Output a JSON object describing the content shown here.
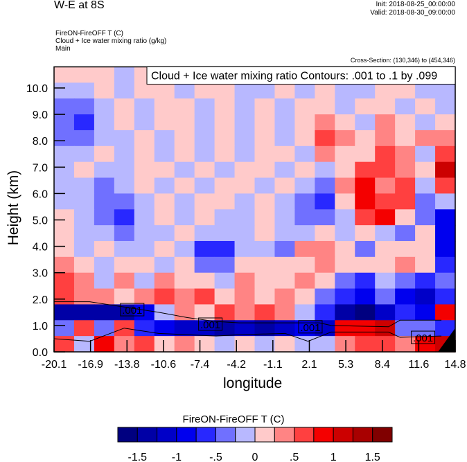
{
  "header": {
    "title": "W-E at 8S",
    "init": "Init: 2018-08-25_00:00:00",
    "valid": "Valid: 2018-08-30_09:00:00",
    "subtitles": [
      "FireON-FireOFF T   (C)",
      "Cloud + Ice water mixing ratio   (g/kg)",
      "Main"
    ],
    "cross_section": "Cross-Section: (130,346) to (454,346)"
  },
  "chart_data": {
    "type": "heatmap",
    "title": "W-E at 8S",
    "xlabel": "longitude",
    "ylabel": "Height (km)",
    "xlim": [
      -20.1,
      14.8
    ],
    "ylim": [
      0,
      10.8
    ],
    "xticks": [
      "-20.1",
      "-16.9",
      "-13.8",
      "-10.6",
      "-7.4",
      "-4.2",
      "-1.1",
      "2.1",
      "5.3",
      "8.4",
      "11.6",
      "14.8"
    ],
    "yticks": [
      "0.0",
      "1.0",
      "2.0",
      "3.0",
      "4.0",
      "5.0",
      "6.0",
      "7.0",
      "8.0",
      "9.0",
      "10.0"
    ],
    "contour_legend": "Cloud + Ice water mixing ratio Contours: .001 to .1 by .099",
    "contour_labels": [
      {
        "text": ".001",
        "lon": -13.3,
        "h": 1.6
      },
      {
        "text": ".001",
        "lon": -6.5,
        "h": 1.05
      },
      {
        "text": ".001",
        "lon": 2.2,
        "h": 0.95
      },
      {
        "text": ".001",
        "lon": 12.0,
        "h": 0.55
      }
    ],
    "contour_upper": [
      [
        -20.1,
        1.9
      ],
      [
        -17,
        1.9
      ],
      [
        -14,
        1.7
      ],
      [
        -11,
        1.5
      ],
      [
        -8.5,
        1.3
      ],
      [
        -6,
        1.15
      ],
      [
        -4,
        1.1
      ],
      [
        0,
        1.1
      ],
      [
        3,
        1.1
      ],
      [
        4,
        1.0
      ],
      [
        9,
        0.95
      ],
      [
        10,
        1.2
      ],
      [
        13.6,
        1.2
      ]
    ],
    "contour_lower": [
      [
        -20.1,
        0.5
      ],
      [
        -17,
        0.4
      ],
      [
        -14,
        0.9
      ],
      [
        -11,
        0.7
      ],
      [
        -8.5,
        0.65
      ],
      [
        -6,
        0.6
      ],
      [
        -4,
        0.65
      ],
      [
        0,
        0.7
      ],
      [
        2,
        0.4
      ],
      [
        4,
        0.75
      ],
      [
        9,
        0.75
      ],
      [
        10,
        0.55
      ],
      [
        13.6,
        0.6
      ]
    ],
    "terrain": [
      [
        13.3,
        0
      ],
      [
        14.8,
        0
      ],
      [
        14.8,
        0.9
      ]
    ],
    "x_centers": [
      -19.2,
      -17.5,
      -15.7,
      -14.0,
      -12.2,
      -10.5,
      -8.8,
      -7.0,
      -5.3,
      -3.5,
      -1.8,
      0.0,
      1.8,
      3.5,
      5.3,
      7.1,
      8.8,
      10.6,
      12.3,
      14.1
    ],
    "y_centers": [
      10.5,
      9.9,
      9.3,
      8.7,
      8.1,
      7.5,
      6.9,
      6.3,
      5.7,
      5.1,
      4.5,
      3.9,
      3.3,
      2.7,
      2.1,
      1.5,
      0.9,
      0.3
    ],
    "values": [
      [
        0.1,
        0.1,
        0.1,
        -0.1,
        0.1,
        0.1,
        0.1,
        -0.1,
        0.1,
        0.1,
        -0.1,
        -0.1,
        -0.1,
        0.1,
        -0.1,
        -0.1,
        -0.1,
        0.1,
        -0.1,
        -0.1
      ],
      [
        -0.1,
        -0.1,
        0.1,
        -0.1,
        0.1,
        0.1,
        -0.1,
        0.1,
        0.1,
        -0.1,
        -0.1,
        0.1,
        -0.1,
        0.1,
        -0.1,
        -0.1,
        0.1,
        0.1,
        -0.1,
        -0.1
      ],
      [
        -0.3,
        -0.3,
        -0.1,
        0.1,
        -0.1,
        0.1,
        0.1,
        -0.1,
        0.1,
        -0.1,
        0.1,
        -0.1,
        0.1,
        0.1,
        -0.1,
        0.1,
        0.1,
        -0.1,
        0.1,
        -0.1
      ],
      [
        -0.4,
        -0.6,
        -0.1,
        0.1,
        -0.1,
        0.1,
        0.1,
        -0.1,
        0.1,
        -0.1,
        0.1,
        -0.1,
        0.1,
        0.4,
        0.1,
        -0.1,
        0.4,
        0.1,
        -0.1,
        0.1
      ],
      [
        -0.3,
        -0.4,
        -0.1,
        -0.1,
        0.1,
        -0.1,
        0.1,
        -0.1,
        0.1,
        -0.1,
        0.1,
        -0.1,
        0.1,
        0.6,
        0.4,
        0.1,
        0.4,
        0.1,
        0.4,
        0.4
      ],
      [
        -0.1,
        -0.1,
        0.1,
        -0.1,
        0.1,
        -0.1,
        0.1,
        -0.1,
        0.1,
        -0.1,
        0.1,
        0.1,
        -0.1,
        0.4,
        0.1,
        0.1,
        0.6,
        0.4,
        -0.1,
        0.6
      ],
      [
        -0.1,
        0.1,
        -0.1,
        -0.1,
        0.1,
        0.1,
        -0.1,
        0.1,
        -0.1,
        0.1,
        0.1,
        -0.1,
        0.1,
        -0.1,
        0.1,
        0.6,
        0.6,
        0.4,
        0.1,
        1.2
      ],
      [
        -0.1,
        -0.1,
        -0.3,
        -0.1,
        0.1,
        -0.1,
        0.1,
        -0.1,
        0.1,
        0.1,
        -0.1,
        0.1,
        -0.1,
        -0.4,
        0.4,
        0.9,
        0.4,
        0.6,
        -0.1,
        0.6
      ],
      [
        -0.1,
        -0.1,
        -0.3,
        -0.4,
        -0.1,
        0.1,
        -0.1,
        0.1,
        0.1,
        -0.1,
        0.1,
        -0.1,
        -0.4,
        -0.6,
        0.1,
        0.9,
        0.6,
        0.6,
        -0.4,
        -0.1
      ],
      [
        0.1,
        -0.1,
        -0.3,
        -0.6,
        -0.1,
        0.1,
        -0.1,
        0.1,
        -0.1,
        -0.1,
        0.1,
        -0.1,
        -0.4,
        -0.4,
        -0.1,
        0.6,
        0.9,
        0.1,
        -0.4,
        -0.9
      ],
      [
        0.1,
        -0.1,
        -0.1,
        -0.3,
        -0.1,
        -0.1,
        0.1,
        -0.1,
        -0.1,
        -0.1,
        0.1,
        -0.1,
        -0.1,
        0.1,
        -0.1,
        0.1,
        -0.1,
        -0.4,
        0.1,
        -0.9
      ],
      [
        0.1,
        -0.1,
        0.1,
        -0.1,
        -0.1,
        0.1,
        -0.1,
        -0.6,
        -0.6,
        -0.1,
        -0.1,
        -0.4,
        0.4,
        0.4,
        0.1,
        -0.4,
        0.1,
        0.1,
        0.1,
        -0.9
      ],
      [
        0.4,
        0.1,
        -0.1,
        0.1,
        0.1,
        -0.1,
        0.1,
        -0.4,
        -0.4,
        0.1,
        0.1,
        0.1,
        0.1,
        0.4,
        0.1,
        0.1,
        0.1,
        0.4,
        0.1,
        -0.6
      ],
      [
        0.6,
        0.4,
        -0.1,
        0.4,
        -0.1,
        0.4,
        0.1,
        0.1,
        -0.1,
        0.4,
        0.1,
        0.1,
        0.4,
        0.1,
        -0.4,
        -0.6,
        -0.1,
        -0.4,
        -0.6,
        -0.4
      ],
      [
        0.6,
        0.4,
        0.4,
        0.1,
        0.4,
        0.6,
        0.4,
        0.6,
        0.1,
        0.4,
        0.1,
        0.4,
        0.1,
        -0.4,
        -0.6,
        -0.9,
        -0.4,
        -0.9,
        -1.1,
        -0.6
      ],
      [
        -1.3,
        -1.3,
        -1.3,
        -1.3,
        -0.9,
        -0.1,
        0.4,
        0.1,
        0.6,
        0.4,
        0.6,
        0.4,
        -0.1,
        -0.6,
        -1.4,
        -1.6,
        -1.1,
        -0.6,
        -0.9,
        0.9
      ],
      [
        -0.4,
        0.6,
        -0.4,
        0.6,
        -0.6,
        -0.9,
        -1.1,
        -1.1,
        -1.3,
        -1.1,
        -1.3,
        -1.1,
        -0.9,
        -1.1,
        0.9,
        0.9,
        1.2,
        -0.4,
        -0.4,
        -0.6
      ],
      [
        0.6,
        -0.1,
        0.9,
        0.4,
        0.6,
        0.1,
        0.4,
        0.1,
        -0.1,
        0.1,
        -0.1,
        0.1,
        -0.1,
        -0.1,
        0.4,
        0.6,
        0.6,
        0.4,
        0.9,
        1.2
      ]
    ],
    "colorbar": {
      "title": "FireON-FireOFF T  (C)",
      "levels": [
        -1.5,
        -1.25,
        -1,
        -0.75,
        -0.5,
        -0.25,
        0,
        0.25,
        0.5,
        0.75,
        1,
        1.25,
        1.5
      ],
      "labels": [
        "-1.5",
        "-1",
        "-.5",
        "0",
        ".5",
        "1",
        "1.5"
      ],
      "label_values": [
        -1.5,
        -1,
        -0.5,
        0,
        0.5,
        1,
        1.5
      ],
      "colors": [
        "#000080",
        "#0000a6",
        "#0000c8",
        "#0000ee",
        "#2828ff",
        "#7070ff",
        "#b8b8ff",
        "#ffcaca",
        "#ff8484",
        "#ff4040",
        "#f40000",
        "#cc0000",
        "#a80000",
        "#800000"
      ]
    }
  }
}
